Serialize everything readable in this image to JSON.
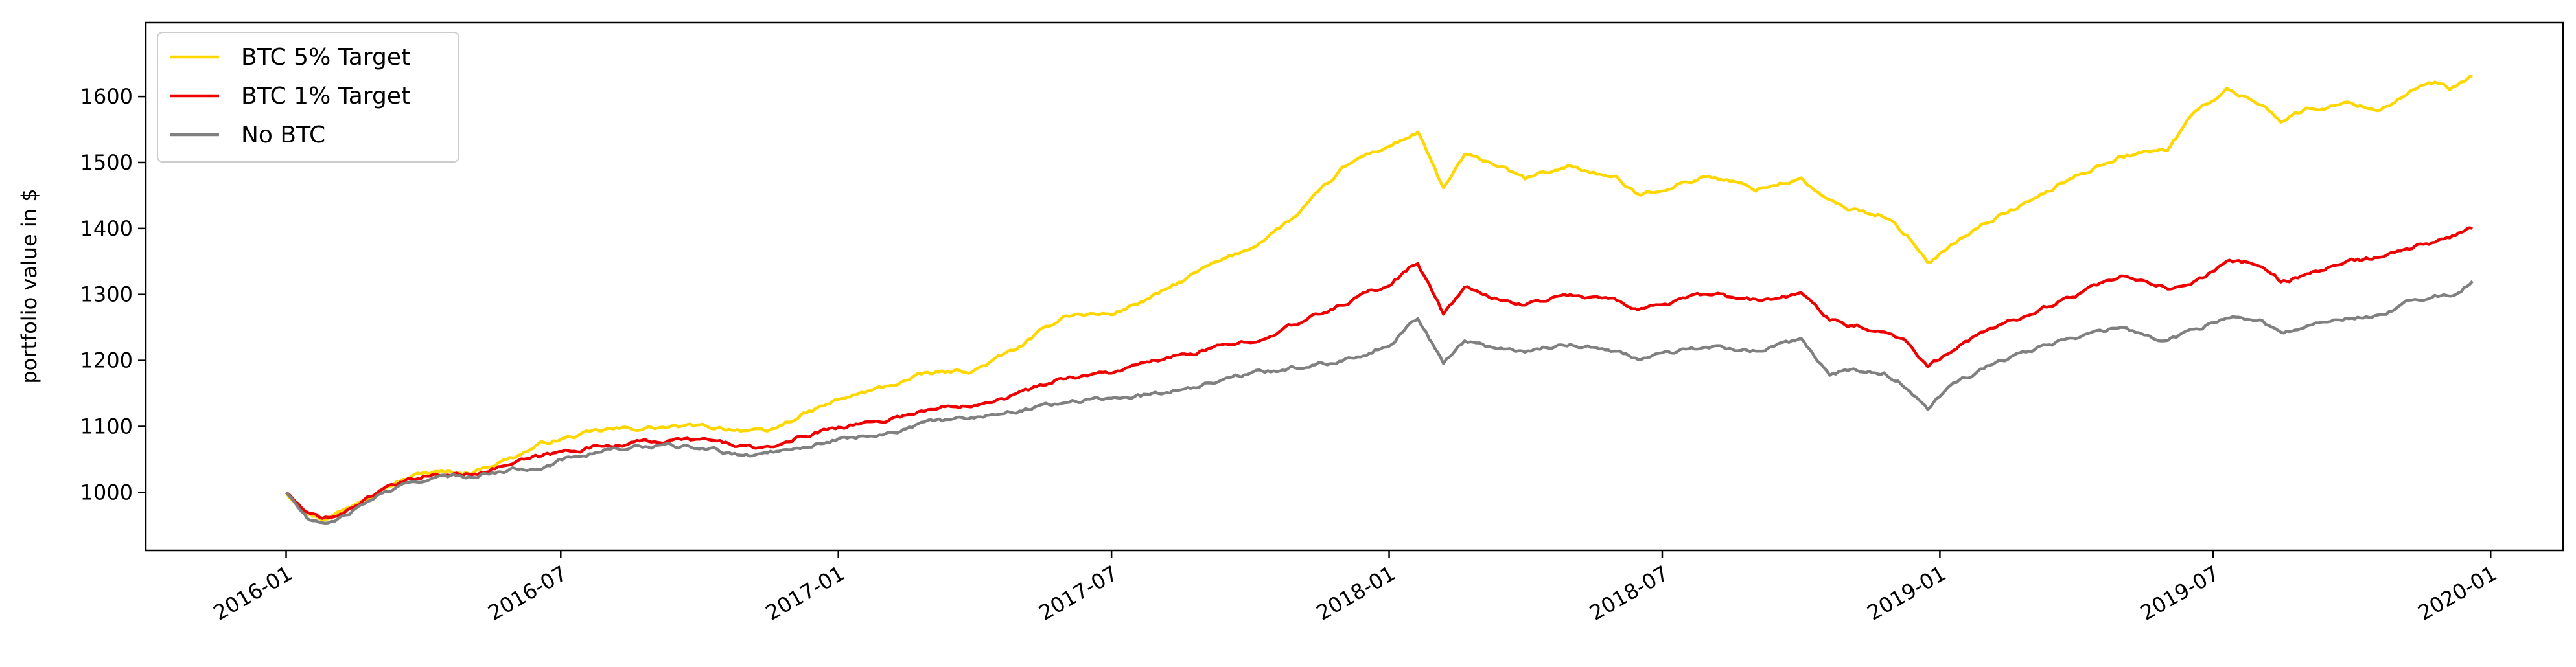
{
  "chart_data": {
    "type": "line",
    "title": "",
    "xlabel": "",
    "ylabel": "portfolio value in $",
    "xlim": [
      "2015-09-30",
      "2020-02-18"
    ],
    "ylim": [
      912,
      1712
    ],
    "grid": false,
    "legend_position": "top-left",
    "x_ticks": [
      "2016-01",
      "2016-07",
      "2017-01",
      "2017-07",
      "2018-01",
      "2018-07",
      "2019-01",
      "2019-07",
      "2020-01"
    ],
    "y_ticks": [
      1000,
      1100,
      1200,
      1300,
      1400,
      1500,
      1600
    ],
    "series": [
      {
        "name": "BTC 5% Target",
        "color": "#ffd700",
        "points": [
          [
            "2016-01-01",
            1000
          ],
          [
            "2016-01-15",
            970
          ],
          [
            "2016-01-25",
            960
          ],
          [
            "2016-02-10",
            975
          ],
          [
            "2016-03-01",
            1005
          ],
          [
            "2016-04-01",
            1030
          ],
          [
            "2016-05-01",
            1030
          ],
          [
            "2016-06-01",
            1055
          ],
          [
            "2016-06-20",
            1075
          ],
          [
            "2016-07-10",
            1085
          ],
          [
            "2016-08-01",
            1095
          ],
          [
            "2016-09-01",
            1098
          ],
          [
            "2016-10-01",
            1100
          ],
          [
            "2016-11-01",
            1095
          ],
          [
            "2016-11-15",
            1090
          ],
          [
            "2016-12-01",
            1110
          ],
          [
            "2017-01-01",
            1140
          ],
          [
            "2017-02-01",
            1160
          ],
          [
            "2017-03-01",
            1180
          ],
          [
            "2017-04-01",
            1185
          ],
          [
            "2017-05-01",
            1220
          ],
          [
            "2017-06-01",
            1270
          ],
          [
            "2017-07-01",
            1270
          ],
          [
            "2017-08-01",
            1300
          ],
          [
            "2017-09-01",
            1340
          ],
          [
            "2017-10-01",
            1370
          ],
          [
            "2017-11-01",
            1420
          ],
          [
            "2017-12-01",
            1490
          ],
          [
            "2017-12-15",
            1510
          ],
          [
            "2018-01-01",
            1525
          ],
          [
            "2018-01-20",
            1545
          ],
          [
            "2018-02-06",
            1460
          ],
          [
            "2018-02-20",
            1510
          ],
          [
            "2018-03-10",
            1500
          ],
          [
            "2018-04-01",
            1475
          ],
          [
            "2018-05-01",
            1495
          ],
          [
            "2018-06-01",
            1475
          ],
          [
            "2018-06-15",
            1450
          ],
          [
            "2018-07-01",
            1460
          ],
          [
            "2018-08-01",
            1480
          ],
          [
            "2018-09-01",
            1460
          ],
          [
            "2018-10-01",
            1475
          ],
          [
            "2018-10-20",
            1440
          ],
          [
            "2018-11-01",
            1430
          ],
          [
            "2018-11-25",
            1420
          ],
          [
            "2018-12-10",
            1390
          ],
          [
            "2018-12-24",
            1345
          ],
          [
            "2019-01-10",
            1380
          ],
          [
            "2019-02-01",
            1410
          ],
          [
            "2019-03-01",
            1440
          ],
          [
            "2019-04-01",
            1480
          ],
          [
            "2019-05-01",
            1510
          ],
          [
            "2019-06-01",
            1520
          ],
          [
            "2019-06-20",
            1580
          ],
          [
            "2019-07-10",
            1610
          ],
          [
            "2019-08-01",
            1590
          ],
          [
            "2019-08-15",
            1565
          ],
          [
            "2019-09-01",
            1580
          ],
          [
            "2019-10-01",
            1590
          ],
          [
            "2019-10-20",
            1580
          ],
          [
            "2019-11-10",
            1610
          ],
          [
            "2019-11-25",
            1620
          ],
          [
            "2019-12-05",
            1610
          ],
          [
            "2019-12-20",
            1630
          ]
        ]
      },
      {
        "name": "BTC 1% Target",
        "color": "#ee0000",
        "points": [
          [
            "2016-01-01",
            1000
          ],
          [
            "2016-01-15",
            968
          ],
          [
            "2016-01-25",
            958
          ],
          [
            "2016-02-10",
            972
          ],
          [
            "2016-03-01",
            1000
          ],
          [
            "2016-04-01",
            1025
          ],
          [
            "2016-05-01",
            1028
          ],
          [
            "2016-06-01",
            1045
          ],
          [
            "2016-06-20",
            1055
          ],
          [
            "2016-07-10",
            1065
          ],
          [
            "2016-08-01",
            1072
          ],
          [
            "2016-09-01",
            1078
          ],
          [
            "2016-10-01",
            1080
          ],
          [
            "2016-11-01",
            1070
          ],
          [
            "2016-11-15",
            1065
          ],
          [
            "2016-12-01",
            1080
          ],
          [
            "2017-01-01",
            1100
          ],
          [
            "2017-02-01",
            1110
          ],
          [
            "2017-03-01",
            1125
          ],
          [
            "2017-04-01",
            1135
          ],
          [
            "2017-05-01",
            1150
          ],
          [
            "2017-06-01",
            1175
          ],
          [
            "2017-07-01",
            1182
          ],
          [
            "2017-08-01",
            1200
          ],
          [
            "2017-09-01",
            1215
          ],
          [
            "2017-10-01",
            1230
          ],
          [
            "2017-11-01",
            1255
          ],
          [
            "2017-12-01",
            1285
          ],
          [
            "2017-12-15",
            1300
          ],
          [
            "2018-01-01",
            1315
          ],
          [
            "2018-01-20",
            1350
          ],
          [
            "2018-02-06",
            1270
          ],
          [
            "2018-02-20",
            1310
          ],
          [
            "2018-03-10",
            1295
          ],
          [
            "2018-04-01",
            1285
          ],
          [
            "2018-05-01",
            1300
          ],
          [
            "2018-06-01",
            1290
          ],
          [
            "2018-06-15",
            1280
          ],
          [
            "2018-07-01",
            1285
          ],
          [
            "2018-08-01",
            1300
          ],
          [
            "2018-09-01",
            1290
          ],
          [
            "2018-10-01",
            1300
          ],
          [
            "2018-10-20",
            1265
          ],
          [
            "2018-11-01",
            1255
          ],
          [
            "2018-11-25",
            1245
          ],
          [
            "2018-12-10",
            1230
          ],
          [
            "2018-12-24",
            1190
          ],
          [
            "2019-01-10",
            1220
          ],
          [
            "2019-02-01",
            1245
          ],
          [
            "2019-03-01",
            1270
          ],
          [
            "2019-04-01",
            1300
          ],
          [
            "2019-05-01",
            1325
          ],
          [
            "2019-06-01",
            1310
          ],
          [
            "2019-06-20",
            1320
          ],
          [
            "2019-07-10",
            1350
          ],
          [
            "2019-08-01",
            1345
          ],
          [
            "2019-08-15",
            1320
          ],
          [
            "2019-09-01",
            1330
          ],
          [
            "2019-10-01",
            1350
          ],
          [
            "2019-10-20",
            1355
          ],
          [
            "2019-11-10",
            1370
          ],
          [
            "2019-11-25",
            1380
          ],
          [
            "2019-12-05",
            1385
          ],
          [
            "2019-12-20",
            1400
          ]
        ]
      },
      {
        "name": "No BTC",
        "color": "#808080",
        "points": [
          [
            "2016-01-01",
            1000
          ],
          [
            "2016-01-15",
            960
          ],
          [
            "2016-01-25",
            950
          ],
          [
            "2016-02-10",
            965
          ],
          [
            "2016-03-01",
            995
          ],
          [
            "2016-04-01",
            1020
          ],
          [
            "2016-05-01",
            1025
          ],
          [
            "2016-06-01",
            1035
          ],
          [
            "2016-06-20",
            1040
          ],
          [
            "2016-07-10",
            1055
          ],
          [
            "2016-08-01",
            1065
          ],
          [
            "2016-09-01",
            1070
          ],
          [
            "2016-10-01",
            1068
          ],
          [
            "2016-11-01",
            1055
          ],
          [
            "2016-11-15",
            1060
          ],
          [
            "2016-12-01",
            1068
          ],
          [
            "2017-01-01",
            1080
          ],
          [
            "2017-02-01",
            1090
          ],
          [
            "2017-03-01",
            1105
          ],
          [
            "2017-04-01",
            1115
          ],
          [
            "2017-05-01",
            1125
          ],
          [
            "2017-06-01",
            1138
          ],
          [
            "2017-07-01",
            1142
          ],
          [
            "2017-08-01",
            1150
          ],
          [
            "2017-09-01",
            1165
          ],
          [
            "2017-10-01",
            1180
          ],
          [
            "2017-11-01",
            1190
          ],
          [
            "2017-12-01",
            1200
          ],
          [
            "2017-12-15",
            1210
          ],
          [
            "2018-01-01",
            1225
          ],
          [
            "2018-01-20",
            1265
          ],
          [
            "2018-02-06",
            1195
          ],
          [
            "2018-02-20",
            1230
          ],
          [
            "2018-03-10",
            1220
          ],
          [
            "2018-04-01",
            1215
          ],
          [
            "2018-05-01",
            1225
          ],
          [
            "2018-06-01",
            1215
          ],
          [
            "2018-06-15",
            1200
          ],
          [
            "2018-07-01",
            1210
          ],
          [
            "2018-08-01",
            1220
          ],
          [
            "2018-09-01",
            1215
          ],
          [
            "2018-10-01",
            1230
          ],
          [
            "2018-10-20",
            1180
          ],
          [
            "2018-11-01",
            1185
          ],
          [
            "2018-11-25",
            1180
          ],
          [
            "2018-12-10",
            1160
          ],
          [
            "2018-12-24",
            1125
          ],
          [
            "2019-01-10",
            1165
          ],
          [
            "2019-02-01",
            1190
          ],
          [
            "2019-03-01",
            1215
          ],
          [
            "2019-04-01",
            1235
          ],
          [
            "2019-05-01",
            1250
          ],
          [
            "2019-06-01",
            1230
          ],
          [
            "2019-06-20",
            1245
          ],
          [
            "2019-07-10",
            1268
          ],
          [
            "2019-08-01",
            1260
          ],
          [
            "2019-08-15",
            1240
          ],
          [
            "2019-09-01",
            1255
          ],
          [
            "2019-10-01",
            1265
          ],
          [
            "2019-10-20",
            1270
          ],
          [
            "2019-11-10",
            1290
          ],
          [
            "2019-11-25",
            1300
          ],
          [
            "2019-12-05",
            1298
          ],
          [
            "2019-12-20",
            1320
          ]
        ]
      }
    ]
  }
}
